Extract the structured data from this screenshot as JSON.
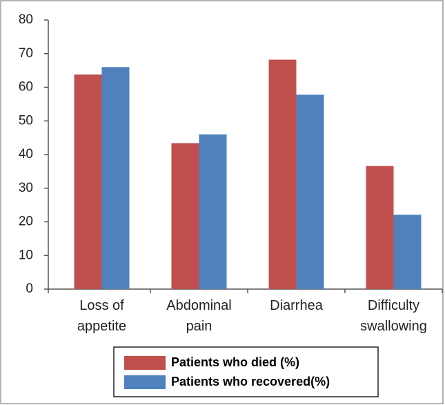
{
  "chart_data": {
    "type": "bar",
    "categories": [
      "Loss of appetite",
      "Abdominal pain",
      "Diarrhea",
      "Difficulty swallowing"
    ],
    "series": [
      {
        "name": "Patients who died (%)",
        "color": "#c0504d",
        "values": [
          63.8,
          43.4,
          68.2,
          36.6
        ]
      },
      {
        "name": "Patients who recovered(%)",
        "color": "#4f81bd",
        "values": [
          66,
          46,
          57.8,
          22.1
        ]
      }
    ],
    "ylim": [
      0,
      80
    ],
    "yticks": [
      0,
      10,
      20,
      30,
      40,
      50,
      60,
      70,
      80
    ],
    "grid": false
  }
}
